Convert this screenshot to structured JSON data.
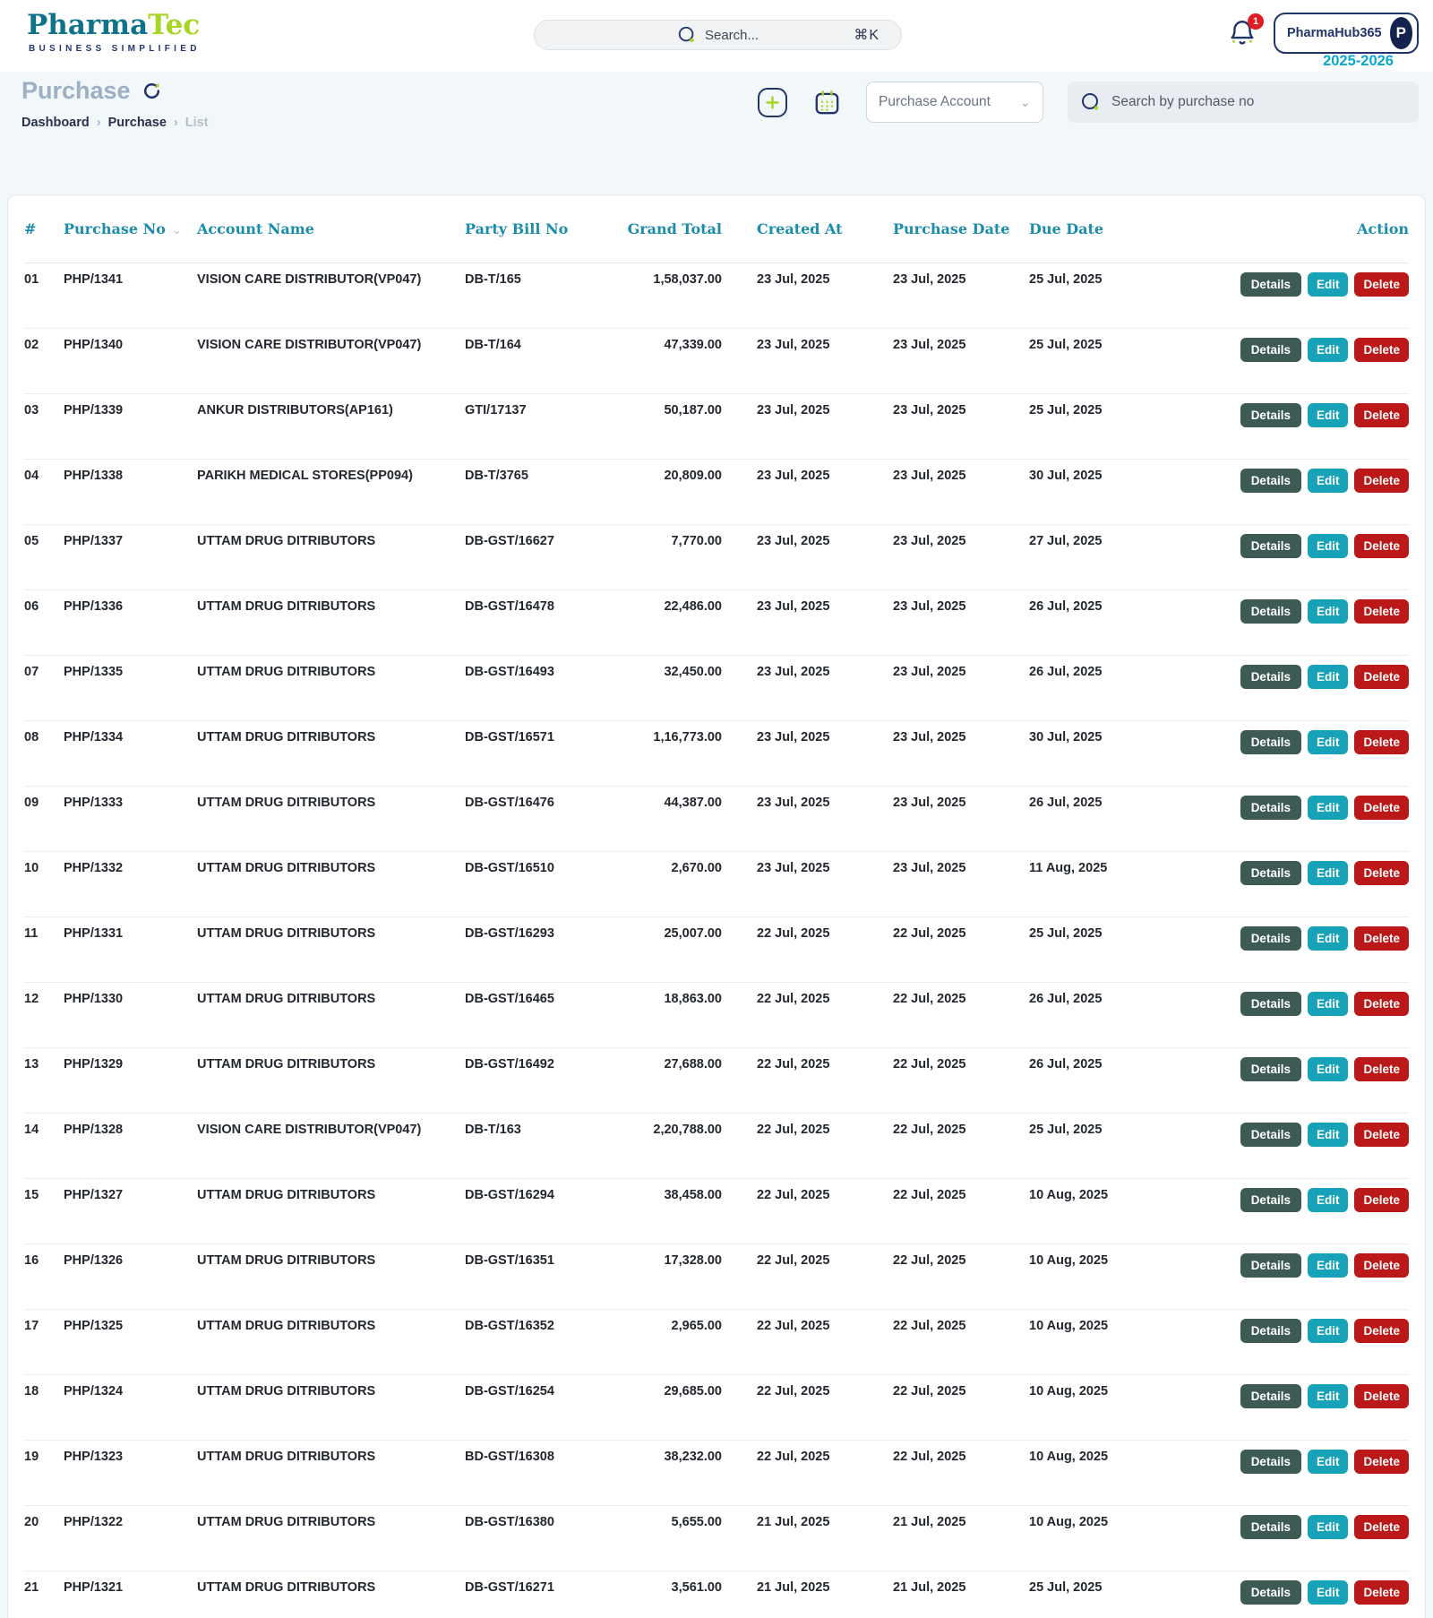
{
  "brand": {
    "primary": "Pharma",
    "secondary": "Tec",
    "tagline": "BUSINESS SIMPLIFIED"
  },
  "topbar": {
    "search_placeholder": "Search...",
    "shortcut": "⌘K",
    "notification_count": "1",
    "account_name": "PharmaHub365",
    "avatar_letter": "P",
    "fiscal_year": "2025-2026"
  },
  "page": {
    "title": "Purchase",
    "breadcrumb": {
      "home": "Dashboard",
      "section": "Purchase",
      "current": "List"
    },
    "filter_label": "Purchase Account",
    "search_placeholder": "Search by purchase no"
  },
  "table": {
    "headers": [
      "#",
      "Purchase No",
      "Account Name",
      "Party Bill No",
      "Grand Total",
      "Created At",
      "Purchase Date",
      "Due Date",
      "Action"
    ],
    "action_labels": {
      "details": "Details",
      "edit": "Edit",
      "delete": "Delete"
    },
    "rows": [
      {
        "no": "01",
        "purchase_no": "PHP/1341",
        "account": "VISION CARE DISTRIBUTOR(VP047)",
        "bill_no": "DB-T/165",
        "grand_total": "1,58,037.00",
        "created": "23 Jul, 2025",
        "purchase_date": "23 Jul, 2025",
        "due_date": "25 Jul, 2025"
      },
      {
        "no": "02",
        "purchase_no": "PHP/1340",
        "account": "VISION CARE DISTRIBUTOR(VP047)",
        "bill_no": "DB-T/164",
        "grand_total": "47,339.00",
        "created": "23 Jul, 2025",
        "purchase_date": "23 Jul, 2025",
        "due_date": "25 Jul, 2025"
      },
      {
        "no": "03",
        "purchase_no": "PHP/1339",
        "account": "ANKUR DISTRIBUTORS(AP161)",
        "bill_no": "GTI/17137",
        "grand_total": "50,187.00",
        "created": "23 Jul, 2025",
        "purchase_date": "23 Jul, 2025",
        "due_date": "25 Jul, 2025"
      },
      {
        "no": "04",
        "purchase_no": "PHP/1338",
        "account": "PARIKH MEDICAL STORES(PP094)",
        "bill_no": "DB-T/3765",
        "grand_total": "20,809.00",
        "created": "23 Jul, 2025",
        "purchase_date": "23 Jul, 2025",
        "due_date": "30 Jul, 2025"
      },
      {
        "no": "05",
        "purchase_no": "PHP/1337",
        "account": "UTTAM DRUG DITRIBUTORS",
        "bill_no": "DB-GST/16627",
        "grand_total": "7,770.00",
        "created": "23 Jul, 2025",
        "purchase_date": "23 Jul, 2025",
        "due_date": "27 Jul, 2025"
      },
      {
        "no": "06",
        "purchase_no": "PHP/1336",
        "account": "UTTAM DRUG DITRIBUTORS",
        "bill_no": "DB-GST/16478",
        "grand_total": "22,486.00",
        "created": "23 Jul, 2025",
        "purchase_date": "23 Jul, 2025",
        "due_date": "26 Jul, 2025"
      },
      {
        "no": "07",
        "purchase_no": "PHP/1335",
        "account": "UTTAM DRUG DITRIBUTORS",
        "bill_no": "DB-GST/16493",
        "grand_total": "32,450.00",
        "created": "23 Jul, 2025",
        "purchase_date": "23 Jul, 2025",
        "due_date": "26 Jul, 2025"
      },
      {
        "no": "08",
        "purchase_no": "PHP/1334",
        "account": "UTTAM DRUG DITRIBUTORS",
        "bill_no": "DB-GST/16571",
        "grand_total": "1,16,773.00",
        "created": "23 Jul, 2025",
        "purchase_date": "23 Jul, 2025",
        "due_date": "30 Jul, 2025"
      },
      {
        "no": "09",
        "purchase_no": "PHP/1333",
        "account": "UTTAM DRUG DITRIBUTORS",
        "bill_no": "DB-GST/16476",
        "grand_total": "44,387.00",
        "created": "23 Jul, 2025",
        "purchase_date": "23 Jul, 2025",
        "due_date": "26 Jul, 2025"
      },
      {
        "no": "10",
        "purchase_no": "PHP/1332",
        "account": "UTTAM DRUG DITRIBUTORS",
        "bill_no": "DB-GST/16510",
        "grand_total": "2,670.00",
        "created": "23 Jul, 2025",
        "purchase_date": "23 Jul, 2025",
        "due_date": "11 Aug, 2025"
      },
      {
        "no": "11",
        "purchase_no": "PHP/1331",
        "account": "UTTAM DRUG DITRIBUTORS",
        "bill_no": "DB-GST/16293",
        "grand_total": "25,007.00",
        "created": "22 Jul, 2025",
        "purchase_date": "22 Jul, 2025",
        "due_date": "25 Jul, 2025"
      },
      {
        "no": "12",
        "purchase_no": "PHP/1330",
        "account": "UTTAM DRUG DITRIBUTORS",
        "bill_no": "DB-GST/16465",
        "grand_total": "18,863.00",
        "created": "22 Jul, 2025",
        "purchase_date": "22 Jul, 2025",
        "due_date": "26 Jul, 2025"
      },
      {
        "no": "13",
        "purchase_no": "PHP/1329",
        "account": "UTTAM DRUG DITRIBUTORS",
        "bill_no": "DB-GST/16492",
        "grand_total": "27,688.00",
        "created": "22 Jul, 2025",
        "purchase_date": "22 Jul, 2025",
        "due_date": "26 Jul, 2025"
      },
      {
        "no": "14",
        "purchase_no": "PHP/1328",
        "account": "VISION CARE DISTRIBUTOR(VP047)",
        "bill_no": "DB-T/163",
        "grand_total": "2,20,788.00",
        "created": "22 Jul, 2025",
        "purchase_date": "22 Jul, 2025",
        "due_date": "25 Jul, 2025"
      },
      {
        "no": "15",
        "purchase_no": "PHP/1327",
        "account": "UTTAM DRUG DITRIBUTORS",
        "bill_no": "DB-GST/16294",
        "grand_total": "38,458.00",
        "created": "22 Jul, 2025",
        "purchase_date": "22 Jul, 2025",
        "due_date": "10 Aug, 2025"
      },
      {
        "no": "16",
        "purchase_no": "PHP/1326",
        "account": "UTTAM DRUG DITRIBUTORS",
        "bill_no": "DB-GST/16351",
        "grand_total": "17,328.00",
        "created": "22 Jul, 2025",
        "purchase_date": "22 Jul, 2025",
        "due_date": "10 Aug, 2025"
      },
      {
        "no": "17",
        "purchase_no": "PHP/1325",
        "account": "UTTAM DRUG DITRIBUTORS",
        "bill_no": "DB-GST/16352",
        "grand_total": "2,965.00",
        "created": "22 Jul, 2025",
        "purchase_date": "22 Jul, 2025",
        "due_date": "10 Aug, 2025"
      },
      {
        "no": "18",
        "purchase_no": "PHP/1324",
        "account": "UTTAM DRUG DITRIBUTORS",
        "bill_no": "DB-GST/16254",
        "grand_total": "29,685.00",
        "created": "22 Jul, 2025",
        "purchase_date": "22 Jul, 2025",
        "due_date": "10 Aug, 2025"
      },
      {
        "no": "19",
        "purchase_no": "PHP/1323",
        "account": "UTTAM DRUG DITRIBUTORS",
        "bill_no": "BD-GST/16308",
        "grand_total": "38,232.00",
        "created": "22 Jul, 2025",
        "purchase_date": "22 Jul, 2025",
        "due_date": "10 Aug, 2025"
      },
      {
        "no": "20",
        "purchase_no": "PHP/1322",
        "account": "UTTAM DRUG DITRIBUTORS",
        "bill_no": "DB-GST/16380",
        "grand_total": "5,655.00",
        "created": "21 Jul, 2025",
        "purchase_date": "21 Jul, 2025",
        "due_date": "10 Aug, 2025"
      },
      {
        "no": "21",
        "purchase_no": "PHP/1321",
        "account": "UTTAM DRUG DITRIBUTORS",
        "bill_no": "DB-GST/16271",
        "grand_total": "3,561.00",
        "created": "21 Jul, 2025",
        "purchase_date": "21 Jul, 2025",
        "due_date": "25 Jul, 2025"
      }
    ]
  },
  "colors": {
    "brand_teal": "#0e7388",
    "brand_green": "#a6d525",
    "navy": "#22356b",
    "header_teal": "#1b8cab",
    "fiscal_teal": "#0ba7cd",
    "details_btn": "#3d5a55",
    "edit_btn": "#17a2b8",
    "delete_btn": "#bb1919",
    "badge_red": "#e11b22"
  }
}
